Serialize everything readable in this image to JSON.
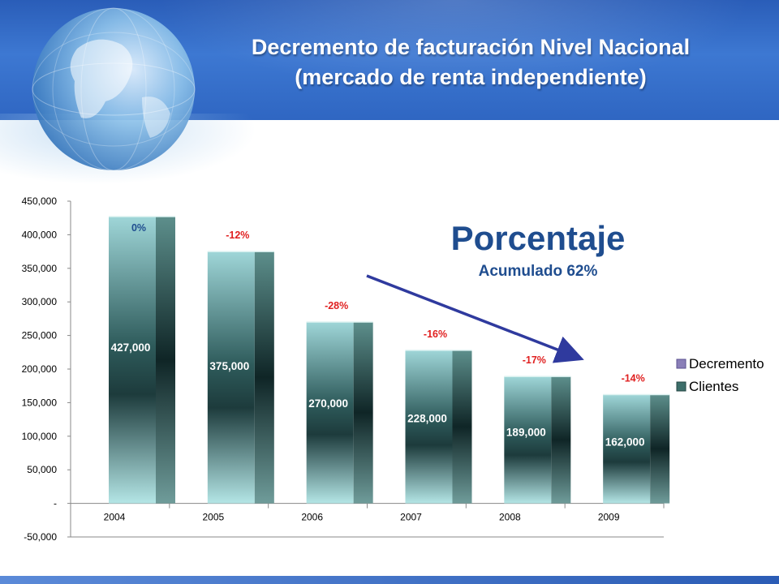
{
  "title_line1": "Decremento de facturación Nivel Nacional",
  "title_line2": "(mercado de renta independiente)",
  "colors": {
    "header": "#2f66c2",
    "bar_light": "#a9dde0",
    "bar_dark": "#1b3a3c",
    "bar_side": "#27504f",
    "pct_red": "#e02020",
    "pct_first": "#1f4d8f",
    "arrow": "#2f3a9e",
    "decremento_legend": "#8a7fb8",
    "clientes_legend": "#3c6e6a"
  },
  "chart_data": {
    "type": "bar",
    "categories": [
      "2004",
      "2005",
      "2006",
      "2007",
      "2008",
      "2009"
    ],
    "series": [
      {
        "name": "Clientes",
        "values": [
          427000,
          375000,
          270000,
          228000,
          189000,
          162000
        ]
      },
      {
        "name": "Decremento",
        "values": [
          "0%",
          "-12%",
          "-28%",
          "-16%",
          "-17%",
          "-14%"
        ]
      }
    ],
    "value_labels": [
      "427,000",
      "375,000",
      "270,000",
      "228,000",
      "189,000",
      "162,000"
    ],
    "ylim": [
      -50000,
      450000
    ],
    "yticks": [
      {
        "value": 450000,
        "label": "450,000"
      },
      {
        "value": 400000,
        "label": "400,000"
      },
      {
        "value": 350000,
        "label": "350,000"
      },
      {
        "value": 300000,
        "label": "300,000"
      },
      {
        "value": 250000,
        "label": "250,000"
      },
      {
        "value": 200000,
        "label": "200,000"
      },
      {
        "value": 150000,
        "label": "150,000"
      },
      {
        "value": 100000,
        "label": "100,000"
      },
      {
        "value": 50000,
        "label": "50,000"
      },
      {
        "value": 0,
        "label": "-"
      },
      {
        "value": -50000,
        "label": "-50,000"
      }
    ],
    "legend": [
      "Decremento",
      "Clientes"
    ],
    "legend_position": "right",
    "annotation": {
      "title": "Porcentaje",
      "subtitle": "Acumulado 62%"
    },
    "grid": false
  }
}
